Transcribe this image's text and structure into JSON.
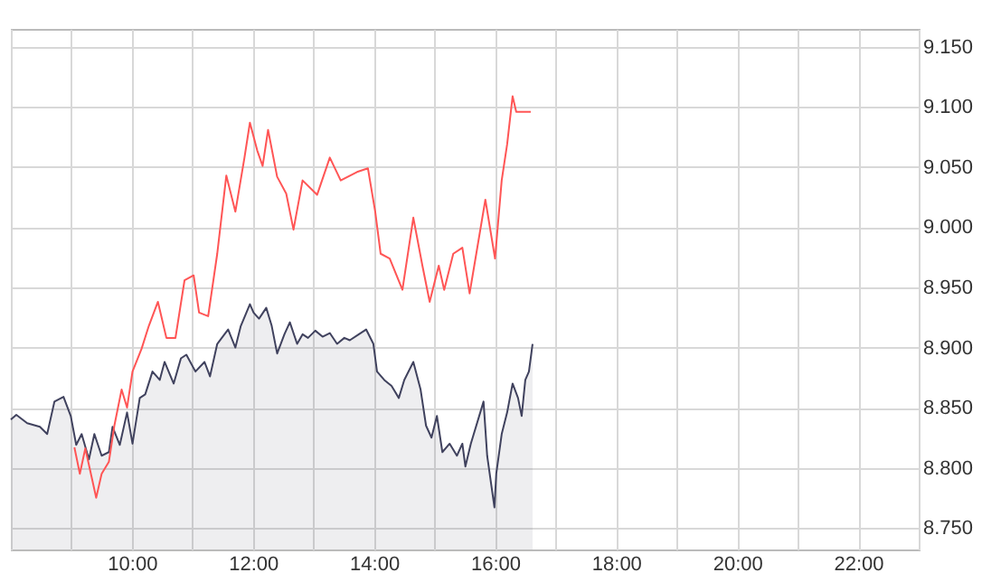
{
  "chart_data": {
    "type": "line",
    "xlim": [
      8,
      23
    ],
    "ylim": [
      8732,
      9165
    ],
    "xticks": [
      {
        "value": 8,
        "label": null
      },
      {
        "value": 9,
        "label": null
      },
      {
        "value": 10,
        "label": "10:00"
      },
      {
        "value": 11,
        "label": null
      },
      {
        "value": 12,
        "label": "12:00"
      },
      {
        "value": 13,
        "label": null
      },
      {
        "value": 14,
        "label": "14:00"
      },
      {
        "value": 15,
        "label": null
      },
      {
        "value": 16,
        "label": "16:00"
      },
      {
        "value": 17,
        "label": null
      },
      {
        "value": 18,
        "label": "18:00"
      },
      {
        "value": 19,
        "label": null
      },
      {
        "value": 20,
        "label": "20:00"
      },
      {
        "value": 21,
        "label": null
      },
      {
        "value": 22,
        "label": "22:00"
      },
      {
        "value": 23,
        "label": null
      }
    ],
    "yticks": [
      {
        "value": 8750,
        "label": "8.750"
      },
      {
        "value": 8800,
        "label": "8.800"
      },
      {
        "value": 8850,
        "label": "8.850"
      },
      {
        "value": 8900,
        "label": "8.900"
      },
      {
        "value": 8950,
        "label": "8.950"
      },
      {
        "value": 9000,
        "label": "9.000"
      },
      {
        "value": 9050,
        "label": "9.050"
      },
      {
        "value": 9100,
        "label": "9.100"
      },
      {
        "value": 9150,
        "label": "9.150"
      }
    ],
    "grid": true,
    "series": [
      {
        "type": "area",
        "color": "#40425e",
        "x": [
          8.0,
          8.09,
          8.27,
          8.48,
          8.6,
          8.72,
          8.87,
          8.99,
          9.08,
          9.17,
          9.29,
          9.38,
          9.5,
          9.62,
          9.68,
          9.8,
          9.92,
          10.01,
          10.13,
          10.22,
          10.34,
          10.46,
          10.54,
          10.69,
          10.81,
          10.9,
          11.05,
          11.2,
          11.29,
          11.41,
          11.53,
          11.59,
          11.71,
          11.8,
          11.95,
          12.01,
          12.1,
          12.22,
          12.31,
          12.4,
          12.52,
          12.61,
          12.73,
          12.82,
          12.91,
          13.03,
          13.15,
          13.27,
          13.39,
          13.51,
          13.6,
          13.75,
          13.87,
          13.99,
          14.05,
          14.17,
          14.29,
          14.41,
          14.5,
          14.65,
          14.77,
          14.86,
          14.95,
          15.04,
          15.13,
          15.25,
          15.37,
          15.46,
          15.51,
          15.6,
          15.81,
          15.87,
          15.99,
          16.02,
          16.11,
          16.2,
          16.29,
          16.38,
          16.44,
          16.5,
          16.56,
          16.62
        ],
        "values": [
          8840,
          8844,
          8837,
          8834,
          8828,
          8855,
          8859,
          8843,
          8819,
          8828,
          8807,
          8828,
          8810,
          8813,
          8834,
          8819,
          8846,
          8820,
          8858,
          8861,
          8880,
          8873,
          8888,
          8870,
          8891,
          8894,
          8880,
          8888,
          8876,
          8903,
          8911,
          8915,
          8900,
          8918,
          8936,
          8929,
          8924,
          8933,
          8918,
          8895,
          8911,
          8921,
          8903,
          8911,
          8908,
          8914,
          8909,
          8912,
          8903,
          8908,
          8906,
          8911,
          8915,
          8903,
          8880,
          8873,
          8868,
          8858,
          8873,
          8888,
          8865,
          8835,
          8825,
          8843,
          8813,
          8820,
          8810,
          8820,
          8801,
          8820,
          8855,
          8810,
          8767,
          8795,
          8828,
          8846,
          8870,
          8858,
          8843,
          8873,
          8880,
          8903
        ]
      },
      {
        "type": "line",
        "color": "#ff5555",
        "x": [
          9.05,
          9.14,
          9.23,
          9.41,
          9.5,
          9.62,
          9.71,
          9.83,
          9.92,
          10.01,
          10.16,
          10.28,
          10.43,
          10.57,
          10.72,
          10.87,
          11.02,
          11.11,
          11.26,
          11.41,
          11.56,
          11.71,
          11.86,
          11.95,
          12.07,
          12.16,
          12.25,
          12.4,
          12.55,
          12.67,
          12.82,
          13.06,
          13.27,
          13.45,
          13.72,
          13.9,
          14.02,
          14.11,
          14.26,
          14.47,
          14.65,
          14.8,
          14.92,
          15.07,
          15.16,
          15.31,
          15.46,
          15.58,
          15.69,
          15.84,
          16.0,
          16.11,
          16.2,
          16.29,
          16.35,
          16.59
        ],
        "values": [
          8817,
          8795,
          8816,
          8775,
          8795,
          8805,
          8835,
          8865,
          8850,
          8880,
          8899,
          8918,
          8938,
          8908,
          8908,
          8956,
          8960,
          8929,
          8926,
          8978,
          9043,
          9013,
          9058,
          9087,
          9064,
          9051,
          9081,
          9042,
          9028,
          8998,
          9039,
          9027,
          9058,
          9039,
          9046,
          9049,
          9013,
          8978,
          8974,
          8948,
          9008,
          8968,
          8938,
          8968,
          8948,
          8978,
          8983,
          8945,
          8978,
          9023,
          8974,
          9039,
          9069,
          9109,
          9096,
          9096
        ]
      }
    ]
  }
}
